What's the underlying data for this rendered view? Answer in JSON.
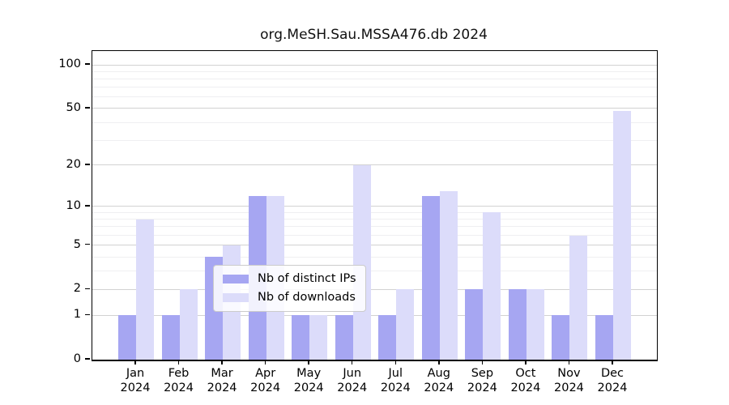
{
  "chart_data": {
    "type": "bar",
    "title": "org.MeSH.Sau.MSSA476.db 2024",
    "categories": [
      "Jan 2024",
      "Feb 2024",
      "Mar 2024",
      "Apr 2024",
      "May 2024",
      "Jun 2024",
      "Jul 2024",
      "Aug 2024",
      "Sep 2024",
      "Oct 2024",
      "Nov 2024",
      "Dec 2024"
    ],
    "series": [
      {
        "name": "Nb of distinct IPs",
        "color": "#a6a6f2",
        "values": [
          1,
          1,
          4,
          12,
          1,
          1,
          1,
          12,
          2,
          2,
          1,
          1
        ]
      },
      {
        "name": "Nb of downloads",
        "color": "#dcdcfa",
        "values": [
          8,
          2,
          5,
          12,
          1,
          20,
          2,
          13,
          9,
          2,
          6,
          48
        ]
      }
    ],
    "y_axis": {
      "scale": "log10(1+v)",
      "ticks": [
        0,
        1,
        2,
        5,
        10,
        20,
        50,
        100
      ],
      "minor_gridlines": [
        3,
        4,
        6,
        7,
        8,
        9,
        30,
        40,
        60,
        70,
        80,
        90
      ],
      "max": 101
    },
    "x_axis": {
      "label_lines_per_category": 2
    },
    "legend": {
      "position": "bottom-center"
    },
    "grid": "horizontal",
    "background_color": "#ffffff"
  }
}
